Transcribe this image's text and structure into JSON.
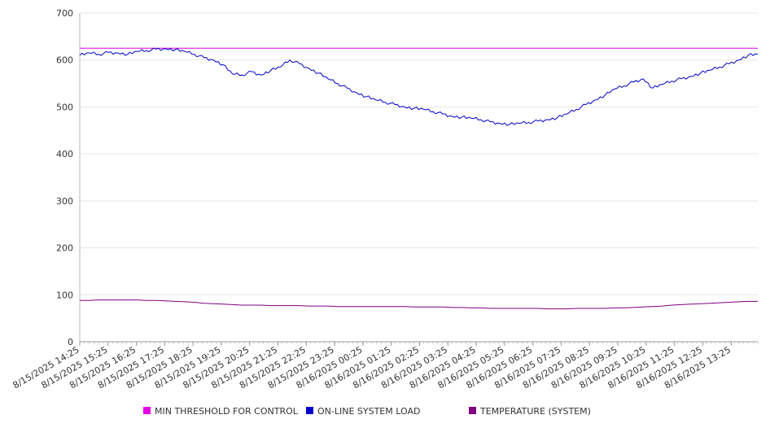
{
  "chart_data": {
    "type": "line",
    "ylim": [
      0,
      700
    ],
    "yticks": [
      0,
      100,
      200,
      300,
      400,
      500,
      600,
      700
    ],
    "grid": true,
    "legend_placement": "bottom-center",
    "xticks": [
      "8/15/2025 14:25",
      "8/15/2025 15:25",
      "8/15/2025 16:25",
      "8/15/2025 17:25",
      "8/15/2025 18:25",
      "8/15/2025 19:25",
      "8/15/2025 20:25",
      "8/15/2025 21:25",
      "8/15/2025 22:25",
      "8/15/2025 23:25",
      "8/16/2025 00:25",
      "8/16/2025 01:25",
      "8/16/2025 02:25",
      "8/16/2025 03:25",
      "8/16/2025 04:25",
      "8/16/2025 05:25",
      "8/16/2025 06:25",
      "8/16/2025 07:25",
      "8/16/2025 08:25",
      "8/16/2025 09:25",
      "8/16/2025 10:25",
      "8/16/2025 11:25",
      "8/16/2025 12:25",
      "8/16/2025 13:25"
    ],
    "x": [
      "14:25",
      "14:45",
      "15:05",
      "15:25",
      "15:45",
      "16:05",
      "16:25",
      "16:45",
      "17:05",
      "17:25",
      "17:45",
      "18:05",
      "18:25",
      "18:45",
      "19:05",
      "19:25",
      "19:45",
      "20:05",
      "20:25",
      "20:45",
      "21:05",
      "21:25",
      "21:45",
      "22:05",
      "22:25",
      "22:45",
      "23:05",
      "23:25",
      "23:45",
      "00:05",
      "00:25",
      "00:45",
      "01:05",
      "01:25",
      "01:45",
      "02:05",
      "02:25",
      "02:45",
      "03:05",
      "03:25",
      "03:45",
      "04:05",
      "04:25",
      "04:45",
      "05:05",
      "05:25",
      "05:45",
      "06:05",
      "06:25",
      "06:45",
      "07:05",
      "07:25",
      "07:45",
      "08:05",
      "08:25",
      "08:45",
      "09:05",
      "09:25",
      "09:45",
      "10:05",
      "10:25",
      "10:45",
      "11:05",
      "11:25",
      "11:45",
      "12:05",
      "12:25",
      "12:45",
      "13:05",
      "13:25",
      "13:45",
      "14:05"
    ],
    "series": [
      {
        "name": "MIN THRESHOLD FOR CONTROL",
        "color": "#e600e6",
        "values": [
          625,
          625,
          625,
          625,
          625,
          625,
          625,
          625,
          625,
          625,
          625,
          625,
          625,
          625,
          625,
          625,
          625,
          625,
          625,
          625,
          625,
          625,
          625,
          625,
          625,
          625,
          625,
          625,
          625,
          625,
          625,
          625,
          625,
          625,
          625,
          625,
          625,
          625,
          625,
          625,
          625,
          625,
          625,
          625,
          625,
          625,
          625,
          625,
          625,
          625,
          625,
          625,
          625,
          625,
          625,
          625,
          625,
          625,
          625,
          625,
          625,
          625,
          625,
          625,
          625,
          625,
          625,
          625,
          625,
          625,
          625,
          625
        ]
      },
      {
        "name": "ON-LINE SYSTEM LOAD",
        "color": "#0000cc",
        "values": [
          610,
          615,
          612,
          616,
          615,
          612,
          618,
          620,
          623,
          624,
          622,
          618,
          612,
          605,
          600,
          590,
          570,
          568,
          575,
          568,
          578,
          585,
          600,
          592,
          582,
          572,
          560,
          550,
          540,
          530,
          522,
          515,
          510,
          505,
          500,
          497,
          495,
          490,
          485,
          480,
          478,
          476,
          473,
          468,
          465,
          463,
          465,
          467,
          470,
          473,
          477,
          485,
          495,
          505,
          515,
          525,
          538,
          545,
          553,
          560,
          540,
          548,
          555,
          560,
          565,
          572,
          578,
          585,
          592,
          600,
          610,
          612
        ]
      },
      {
        "name": "TEMPERATURE (SYSTEM)",
        "color": "#800080",
        "values": [
          88,
          88,
          89,
          89,
          89,
          89,
          89,
          88,
          88,
          87,
          86,
          85,
          84,
          82,
          81,
          80,
          79,
          78,
          78,
          78,
          77,
          77,
          77,
          77,
          76,
          76,
          76,
          75,
          75,
          75,
          75,
          75,
          75,
          75,
          75,
          74,
          74,
          74,
          74,
          73,
          73,
          72,
          72,
          71,
          71,
          71,
          71,
          71,
          71,
          70,
          70,
          70,
          71,
          71,
          71,
          71,
          72,
          72,
          73,
          74,
          75,
          76,
          78,
          79,
          80,
          81,
          82,
          83,
          84,
          85,
          86,
          86
        ]
      }
    ]
  }
}
